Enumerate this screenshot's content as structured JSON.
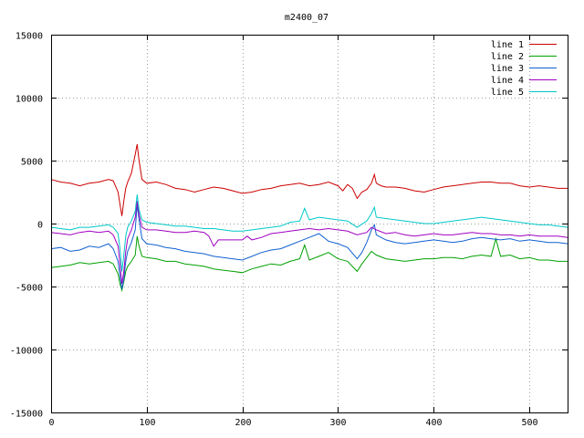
{
  "chart_data": {
    "type": "line",
    "title": "m2400_07",
    "xlabel": "",
    "ylabel": "",
    "xlim": [
      0,
      540
    ],
    "ylim": [
      -15000,
      15000
    ],
    "xticks": [
      0,
      100,
      200,
      300,
      400,
      500
    ],
    "yticks": [
      -15000,
      -10000,
      -5000,
      0,
      5000,
      10000,
      15000
    ],
    "grid": true,
    "legend_position": "top-right",
    "series": [
      {
        "name": "line 1",
        "color": "#cc0000",
        "x": [
          0,
          10,
          20,
          30,
          40,
          50,
          60,
          65,
          70,
          72,
          74,
          76,
          78,
          80,
          84,
          88,
          90,
          92,
          95,
          100,
          110,
          120,
          130,
          140,
          150,
          160,
          170,
          180,
          190,
          200,
          210,
          220,
          230,
          240,
          250,
          260,
          270,
          280,
          290,
          300,
          305,
          310,
          315,
          320,
          325,
          330,
          335,
          338,
          340,
          345,
          350,
          360,
          370,
          380,
          390,
          400,
          410,
          420,
          430,
          440,
          450,
          460,
          470,
          480,
          490,
          500,
          510,
          520,
          530,
          540
        ],
        "y": [
          3500,
          3300,
          3200,
          3000,
          3200,
          3300,
          3500,
          3400,
          2500,
          1500,
          600,
          1800,
          2800,
          3300,
          4000,
          5500,
          6300,
          5000,
          3500,
          3200,
          3300,
          3100,
          2800,
          2700,
          2500,
          2700,
          2900,
          2800,
          2600,
          2400,
          2500,
          2700,
          2800,
          3000,
          3100,
          3200,
          3000,
          3100,
          3300,
          3000,
          2600,
          3100,
          2800,
          2000,
          2500,
          2700,
          3200,
          3900,
          3200,
          3000,
          2900,
          2900,
          2800,
          2600,
          2500,
          2700,
          2900,
          3000,
          3100,
          3200,
          3300,
          3300,
          3200,
          3200,
          3000,
          2900,
          3000,
          2900,
          2800,
          2800
        ]
      },
      {
        "name": "line 2",
        "color": "#00a000",
        "x": [
          0,
          10,
          20,
          30,
          40,
          50,
          60,
          65,
          70,
          72,
          74,
          76,
          78,
          80,
          84,
          88,
          90,
          92,
          95,
          100,
          110,
          120,
          130,
          140,
          150,
          160,
          170,
          180,
          190,
          200,
          210,
          220,
          230,
          240,
          250,
          260,
          265,
          270,
          280,
          290,
          300,
          310,
          320,
          325,
          330,
          335,
          340,
          350,
          360,
          370,
          380,
          390,
          400,
          410,
          420,
          430,
          440,
          450,
          460,
          465,
          470,
          480,
          490,
          500,
          510,
          520,
          530,
          540
        ],
        "y": [
          -3500,
          -3400,
          -3300,
          -3100,
          -3200,
          -3100,
          -3000,
          -3200,
          -4000,
          -4800,
          -5300,
          -4600,
          -3800,
          -3400,
          -3000,
          -2500,
          -1000,
          -1800,
          -2600,
          -2700,
          -2800,
          -3000,
          -3000,
          -3200,
          -3300,
          -3400,
          -3600,
          -3700,
          -3800,
          -3900,
          -3600,
          -3400,
          -3200,
          -3300,
          -3000,
          -2800,
          -1700,
          -2900,
          -2600,
          -2300,
          -2800,
          -3000,
          -3800,
          -3200,
          -2700,
          -2200,
          -2500,
          -2800,
          -2900,
          -3000,
          -2900,
          -2800,
          -2800,
          -2700,
          -2700,
          -2800,
          -2600,
          -2500,
          -2600,
          -1200,
          -2600,
          -2500,
          -2800,
          -2700,
          -2900,
          -2900,
          -3000,
          -3000
        ]
      },
      {
        "name": "line 3",
        "color": "#1060d0",
        "x": [
          0,
          10,
          20,
          30,
          40,
          50,
          60,
          65,
          70,
          72,
          74,
          76,
          78,
          80,
          84,
          88,
          90,
          92,
          95,
          100,
          110,
          120,
          130,
          140,
          150,
          160,
          170,
          180,
          190,
          200,
          210,
          220,
          230,
          240,
          250,
          260,
          270,
          280,
          290,
          300,
          310,
          320,
          325,
          330,
          335,
          338,
          340,
          350,
          360,
          370,
          380,
          390,
          400,
          410,
          420,
          430,
          440,
          450,
          460,
          470,
          480,
          490,
          500,
          510,
          520,
          530,
          540
        ],
        "y": [
          -2000,
          -1900,
          -2200,
          -2100,
          -1800,
          -1900,
          -1600,
          -2000,
          -3000,
          -4200,
          -5200,
          -4400,
          -3000,
          -2200,
          -1500,
          -500,
          1500,
          300,
          -1200,
          -1600,
          -1700,
          -1900,
          -2000,
          -2200,
          -2300,
          -2400,
          -2600,
          -2700,
          -2800,
          -2900,
          -2600,
          -2300,
          -2100,
          -2000,
          -1700,
          -1400,
          -1100,
          -800,
          -1400,
          -1600,
          -1900,
          -2800,
          -2300,
          -1500,
          -500,
          -100,
          -900,
          -1300,
          -1500,
          -1600,
          -1500,
          -1400,
          -1300,
          -1400,
          -1500,
          -1400,
          -1200,
          -1100,
          -1200,
          -1300,
          -1200,
          -1400,
          -1300,
          -1400,
          -1500,
          -1500,
          -1600
        ]
      },
      {
        "name": "line 4",
        "color": "#a000c0",
        "x": [
          0,
          10,
          20,
          30,
          40,
          50,
          60,
          65,
          70,
          72,
          74,
          76,
          78,
          80,
          84,
          88,
          90,
          92,
          95,
          100,
          110,
          120,
          130,
          140,
          150,
          160,
          165,
          170,
          175,
          180,
          190,
          200,
          205,
          210,
          220,
          230,
          240,
          250,
          260,
          270,
          280,
          290,
          300,
          310,
          320,
          330,
          335,
          340,
          350,
          360,
          370,
          380,
          390,
          400,
          410,
          420,
          430,
          440,
          450,
          460,
          470,
          480,
          490,
          500,
          510,
          520,
          530,
          540
        ],
        "y": [
          -700,
          -800,
          -900,
          -700,
          -600,
          -700,
          -600,
          -900,
          -1800,
          -3200,
          -4800,
          -3800,
          -2200,
          -1200,
          -500,
          500,
          1800,
          700,
          -300,
          -500,
          -500,
          -600,
          -700,
          -700,
          -600,
          -700,
          -1000,
          -1800,
          -1300,
          -1300,
          -1300,
          -1300,
          -1000,
          -1300,
          -1100,
          -800,
          -700,
          -600,
          -500,
          -400,
          -500,
          -400,
          -500,
          -600,
          -900,
          -700,
          -300,
          -500,
          -800,
          -700,
          -900,
          -1000,
          -900,
          -800,
          -900,
          -900,
          -800,
          -700,
          -800,
          -800,
          -900,
          -900,
          -1000,
          -900,
          -1000,
          -1000,
          -1000,
          -1100
        ]
      },
      {
        "name": "line 5",
        "color": "#00c8c8",
        "x": [
          0,
          10,
          20,
          30,
          40,
          50,
          60,
          65,
          70,
          72,
          74,
          76,
          78,
          80,
          84,
          88,
          90,
          92,
          95,
          100,
          110,
          120,
          130,
          140,
          150,
          160,
          170,
          180,
          190,
          200,
          210,
          220,
          230,
          240,
          250,
          260,
          265,
          270,
          280,
          290,
          300,
          310,
          320,
          330,
          335,
          338,
          340,
          350,
          360,
          370,
          380,
          390,
          400,
          410,
          420,
          430,
          440,
          450,
          460,
          470,
          480,
          490,
          500,
          510,
          520,
          530,
          540
        ],
        "y": [
          -300,
          -400,
          -500,
          -300,
          -300,
          -200,
          -100,
          -300,
          -800,
          -2000,
          -3800,
          -2500,
          -1000,
          -300,
          200,
          1000,
          2300,
          1100,
          300,
          100,
          0,
          -100,
          -200,
          -200,
          -300,
          -400,
          -400,
          -500,
          -600,
          -600,
          -500,
          -400,
          -300,
          -200,
          100,
          200,
          1200,
          300,
          500,
          400,
          300,
          200,
          -300,
          200,
          800,
          1300,
          500,
          400,
          300,
          200,
          100,
          0,
          0,
          100,
          200,
          300,
          400,
          500,
          400,
          300,
          200,
          100,
          0,
          -100,
          -100,
          -200,
          -300
        ]
      }
    ]
  }
}
